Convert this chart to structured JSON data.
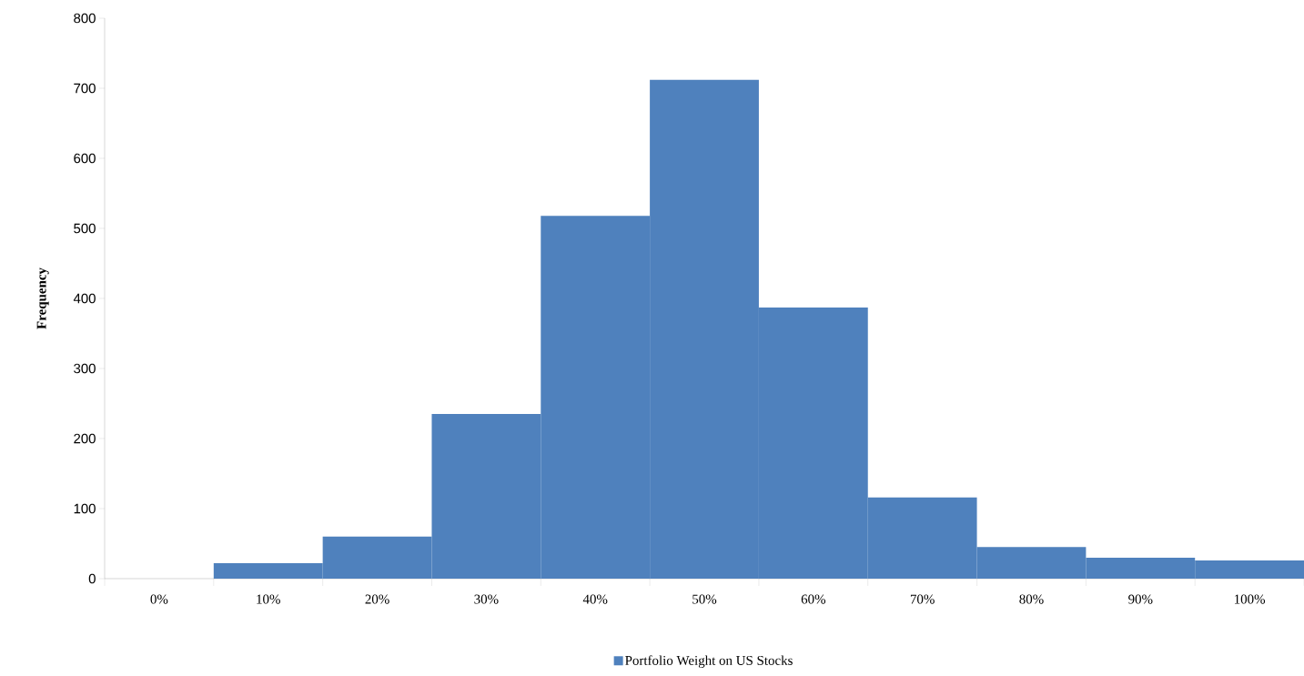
{
  "chart_data": {
    "type": "bar",
    "ylabel": "Frequency",
    "categories": [
      "0%",
      "10%",
      "20%",
      "30%",
      "40%",
      "50%",
      "60%",
      "70%",
      "80%",
      "90%",
      "100%"
    ],
    "series": [
      {
        "name": "Portfolio Weight on US Stocks",
        "color": "#4f81bd",
        "values": [
          0,
          22,
          60,
          235,
          518,
          712,
          387,
          116,
          45,
          30,
          26
        ]
      }
    ],
    "ylim": [
      0,
      800
    ],
    "yticks": [
      0,
      100,
      200,
      300,
      400,
      500,
      600,
      700,
      800
    ],
    "legend": "bottom"
  }
}
